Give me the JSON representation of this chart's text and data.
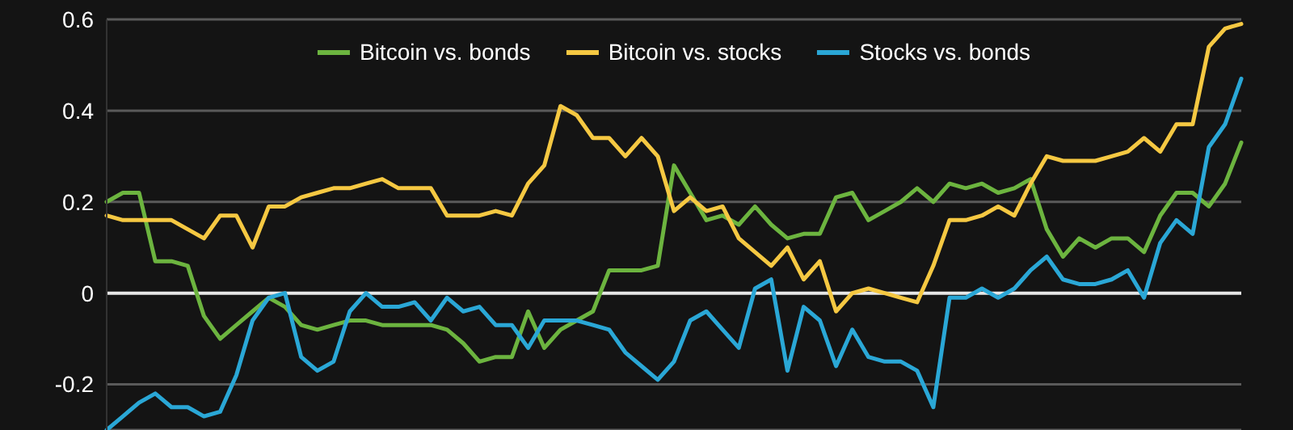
{
  "chart_data": {
    "type": "line",
    "categories": [
      null,
      null,
      null,
      null,
      null,
      null,
      null,
      null,
      null,
      null,
      null,
      null,
      null,
      null,
      null,
      null,
      null,
      null,
      null,
      null,
      null,
      null,
      null,
      null,
      null,
      null,
      null,
      null,
      null,
      null,
      null,
      null,
      null,
      null,
      null,
      null,
      null,
      null,
      null,
      null,
      null,
      null,
      null,
      null,
      null,
      null,
      null,
      null,
      null,
      null,
      null,
      null,
      null,
      null,
      null,
      null,
      null,
      null,
      null,
      null,
      null,
      null,
      null,
      null,
      null,
      null,
      null,
      null,
      null,
      null,
      null
    ],
    "series": [
      {
        "name": "Bitcoin vs. bonds",
        "color": "#6cb43f",
        "values": [
          0.2,
          0.22,
          0.22,
          0.07,
          0.07,
          0.06,
          -0.05,
          -0.1,
          -0.07,
          -0.04,
          -0.01,
          -0.03,
          -0.07,
          -0.08,
          -0.07,
          -0.06,
          -0.06,
          -0.07,
          -0.07,
          -0.07,
          -0.07,
          -0.08,
          -0.11,
          -0.15,
          -0.14,
          -0.14,
          -0.04,
          -0.12,
          -0.08,
          -0.06,
          -0.04,
          0.05,
          0.05,
          0.05,
          0.06,
          0.28,
          0.22,
          0.16,
          0.17,
          0.15,
          0.19,
          0.15,
          0.12,
          0.13,
          0.13,
          0.21,
          0.22,
          0.16,
          0.18,
          0.2,
          0.23,
          0.2,
          0.24,
          0.23,
          0.24,
          0.22,
          0.23,
          0.25,
          0.14,
          0.08,
          0.12,
          0.1,
          0.12,
          0.12,
          0.09,
          0.17,
          0.22,
          0.22,
          0.19,
          0.24,
          0.33
        ]
      },
      {
        "name": "Bitcoin vs. stocks",
        "color": "#f5c842",
        "values": [
          0.17,
          0.16,
          0.16,
          0.16,
          0.16,
          0.14,
          0.12,
          0.17,
          0.17,
          0.1,
          0.19,
          0.19,
          0.21,
          0.22,
          0.23,
          0.23,
          0.24,
          0.25,
          0.23,
          0.23,
          0.23,
          0.17,
          0.17,
          0.17,
          0.18,
          0.17,
          0.24,
          0.28,
          0.41,
          0.39,
          0.34,
          0.34,
          0.3,
          0.34,
          0.3,
          0.18,
          0.21,
          0.18,
          0.19,
          0.12,
          0.09,
          0.06,
          0.1,
          0.03,
          0.07,
          -0.04,
          0.0,
          0.01,
          0.0,
          -0.01,
          -0.02,
          0.06,
          0.16,
          0.16,
          0.17,
          0.19,
          0.17,
          0.24,
          0.3,
          0.29,
          0.29,
          0.29,
          0.3,
          0.31,
          0.34,
          0.31,
          0.37,
          0.37,
          0.54,
          0.58,
          0.59
        ]
      },
      {
        "name": "Stocks vs. bonds",
        "color": "#2aa7d6",
        "values": [
          -0.3,
          -0.27,
          -0.24,
          -0.22,
          -0.25,
          -0.25,
          -0.27,
          -0.26,
          -0.18,
          -0.06,
          -0.01,
          0.0,
          -0.14,
          -0.17,
          -0.15,
          -0.04,
          0.0,
          -0.03,
          -0.03,
          -0.02,
          -0.06,
          -0.01,
          -0.04,
          -0.03,
          -0.07,
          -0.07,
          -0.12,
          -0.06,
          -0.06,
          -0.06,
          -0.07,
          -0.08,
          -0.13,
          -0.16,
          -0.19,
          -0.15,
          -0.06,
          -0.04,
          -0.08,
          -0.12,
          0.01,
          0.03,
          -0.17,
          -0.03,
          -0.06,
          -0.16,
          -0.08,
          -0.14,
          -0.15,
          -0.15,
          -0.17,
          -0.25,
          -0.01,
          -0.01,
          0.01,
          -0.01,
          0.01,
          0.05,
          0.08,
          0.03,
          0.02,
          0.02,
          0.03,
          0.05,
          -0.01,
          0.11,
          0.16,
          0.13,
          0.32,
          0.37,
          0.47
        ]
      }
    ],
    "ylim": [
      -0.3,
      0.6
    ],
    "yticks": [
      -0.2,
      0,
      0.2,
      0.4,
      0.6
    ],
    "grid": "y",
    "legend": "top",
    "tick_labels": "y",
    "marker": "none",
    "line_style": "solid",
    "ref_lines": [
      {
        "axis": "y",
        "value": 0,
        "color": "#e6e6e6"
      }
    ]
  }
}
